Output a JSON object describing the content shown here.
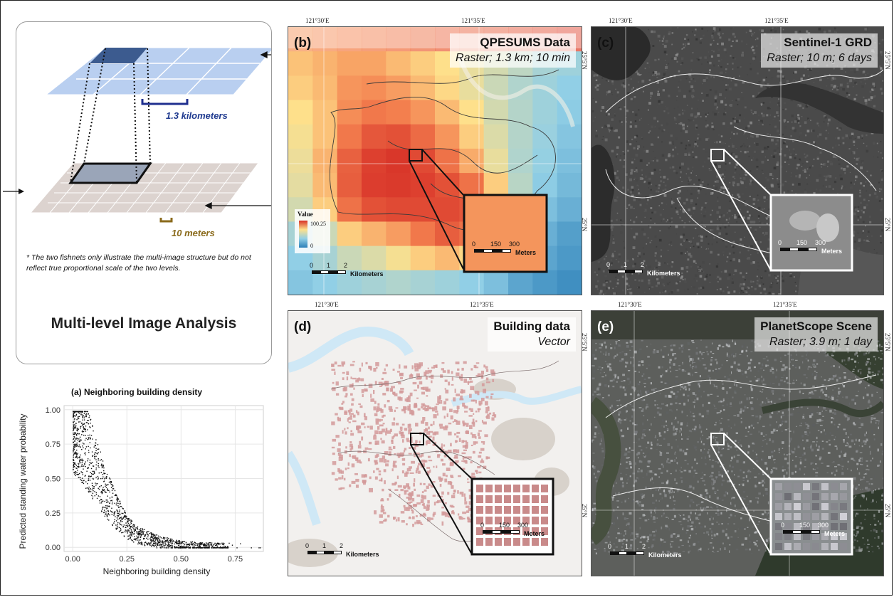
{
  "diagram": {
    "label_coarse": "1.3 kilometers",
    "label_fine": "10 meters",
    "note": "* The two fishnets only illustrate the multi-image structure but do not reflect true proportional scale of the two levels.",
    "title": "Multi-level Image Analysis"
  },
  "scatter": {
    "title": "(a) Neighboring building density",
    "chart_data": {
      "type": "scatter",
      "title": "(a) Neighboring building density",
      "xlabel": "Neighboring building density",
      "ylabel": "Predicted standing water probability",
      "xlim": [
        -0.04,
        0.88
      ],
      "ylim": [
        -0.03,
        1.03
      ],
      "x_ticks": [
        "0.00",
        "0.25",
        "0.50",
        "0.75"
      ],
      "y_ticks": [
        "0.00",
        "0.25",
        "0.50",
        "0.75",
        "1.00"
      ],
      "grid": true,
      "trend": [
        [
          0.0,
          0.92
        ],
        [
          0.05,
          0.78
        ],
        [
          0.1,
          0.58
        ],
        [
          0.15,
          0.4
        ],
        [
          0.2,
          0.26
        ],
        [
          0.25,
          0.15
        ],
        [
          0.3,
          0.09
        ],
        [
          0.4,
          0.04
        ],
        [
          0.5,
          0.015
        ],
        [
          0.6,
          0.006
        ],
        [
          0.75,
          0.002
        ]
      ]
    }
  },
  "panels": {
    "b": {
      "tag": "(b)",
      "title": "QPESUMS Data",
      "subtitle": "Raster; 1.3 km; 10 min",
      "lon1": "121°30′E",
      "lon2": "121°35′E",
      "legend_title": "Value",
      "legend_high": "100.25",
      "legend_low": "0",
      "scale_labels": [
        "0",
        "1",
        "2"
      ],
      "scale_unit": "Kilometers",
      "inset_labels": [
        "0",
        "150",
        "300"
      ],
      "inset_unit": "Meters"
    },
    "c": {
      "tag": "(c)",
      "title": "Sentinel-1 GRD",
      "subtitle": "Raster; 10 m; 6 days",
      "lon1": "121°30′E",
      "lon2": "121°35′E",
      "lat1": "25°5′N",
      "lat2": "25°N",
      "scale_labels": [
        "0",
        "1",
        "2"
      ],
      "scale_unit": "Kilometers",
      "inset_labels": [
        "0",
        "150",
        "300"
      ],
      "inset_unit": "Meters"
    },
    "d": {
      "tag": "(d)",
      "title": "Building data",
      "subtitle": "Vector",
      "lon1": "121°30′E",
      "lon2": "121°35′E",
      "scale_labels": [
        "0",
        "1",
        "2"
      ],
      "scale_unit": "Kilometers",
      "inset_labels": [
        "0",
        "150",
        "300"
      ],
      "inset_unit": "Meters"
    },
    "e": {
      "tag": "(e)",
      "title": "PlanetScope Scene",
      "subtitle": "Raster; 3.9 m; 1 day",
      "lon1": "121°30′E",
      "lon2": "121°35′E",
      "lat1": "25°5′N",
      "lat2": "25°N",
      "scale_labels": [
        "0",
        "1",
        "2"
      ],
      "scale_unit": "Kilometers",
      "inset_labels": [
        "0",
        "150",
        "300"
      ],
      "inset_unit": "Meters"
    }
  },
  "colors": {
    "coarse_grid": "#a9c4ec",
    "fine_grid": "#dcd3cf",
    "rain_high": "#d73027",
    "rain_low": "#2c7fb8",
    "building": "#c98a8a"
  }
}
